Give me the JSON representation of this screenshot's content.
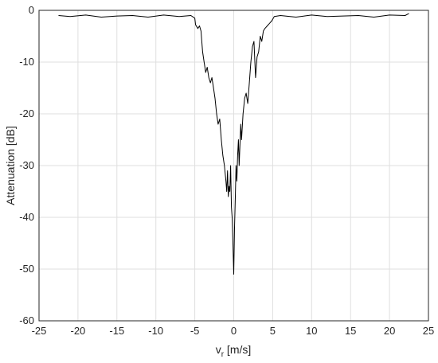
{
  "chart_data": {
    "type": "line",
    "title": "",
    "xlabel_main": "v",
    "xlabel_sub": "r",
    "xlabel_unit": " [m/s]",
    "ylabel": "Attenuation [dB]",
    "xlim": [
      -25,
      25
    ],
    "ylim": [
      -60,
      0
    ],
    "xticks": [
      -25,
      -20,
      -15,
      -10,
      -5,
      0,
      5,
      10,
      15,
      20,
      25
    ],
    "yticks": [
      -60,
      -50,
      -40,
      -30,
      -20,
      -10,
      0
    ],
    "grid": true,
    "series": [
      {
        "color": "#000000",
        "x": [
          -22.5,
          -21,
          -19,
          -17,
          -15,
          -13,
          -11,
          -9,
          -7,
          -5.5,
          -5,
          -4.9,
          -4.6,
          -4.4,
          -4.2,
          -4.0,
          -3.8,
          -3.6,
          -3.4,
          -3.2,
          -3.0,
          -2.8,
          -2.6,
          -2.4,
          -2.2,
          -2.0,
          -1.8,
          -1.6,
          -1.4,
          -1.2,
          -1.0,
          -0.9,
          -0.8,
          -0.7,
          -0.6,
          -0.5,
          -0.4,
          -0.3,
          -0.2,
          -0.1,
          0.0,
          0.1,
          0.2,
          0.3,
          0.4,
          0.5,
          0.6,
          0.7,
          0.8,
          0.9,
          1.0,
          1.2,
          1.4,
          1.6,
          1.8,
          2.0,
          2.2,
          2.4,
          2.6,
          2.8,
          3.0,
          3.2,
          3.4,
          3.6,
          3.8,
          4.0,
          4.3,
          4.6,
          4.9,
          5.2,
          6,
          8,
          10,
          12,
          14,
          16,
          18,
          20,
          22,
          22.5
        ],
        "y": [
          -1.0,
          -1.2,
          -0.9,
          -1.3,
          -1.1,
          -1.0,
          -1.3,
          -0.9,
          -1.2,
          -1.0,
          -1.5,
          -2.8,
          -3.5,
          -3.0,
          -4.0,
          -8.0,
          -10.0,
          -12.0,
          -11.0,
          -13.0,
          -14.0,
          -13.0,
          -15.0,
          -17.0,
          -20.0,
          -22.0,
          -21.0,
          -25.0,
          -28.0,
          -30.0,
          -33.0,
          -35.0,
          -31.0,
          -36.0,
          -34.0,
          -35.0,
          -30.0,
          -38.0,
          -40.0,
          -45.0,
          -51.0,
          -42.0,
          -36.0,
          -30.0,
          -33.0,
          -28.0,
          -25.0,
          -30.0,
          -26.0,
          -22.0,
          -25.0,
          -20.0,
          -17.0,
          -16.0,
          -18.0,
          -14.0,
          -10.0,
          -7.0,
          -6.0,
          -13.0,
          -9.0,
          -8.0,
          -5.0,
          -6.0,
          -4.0,
          -3.5,
          -3.0,
          -2.5,
          -2.0,
          -1.2,
          -1.0,
          -1.3,
          -0.9,
          -1.2,
          -1.1,
          -1.0,
          -1.3,
          -0.9,
          -1.0,
          -0.6
        ]
      }
    ]
  }
}
